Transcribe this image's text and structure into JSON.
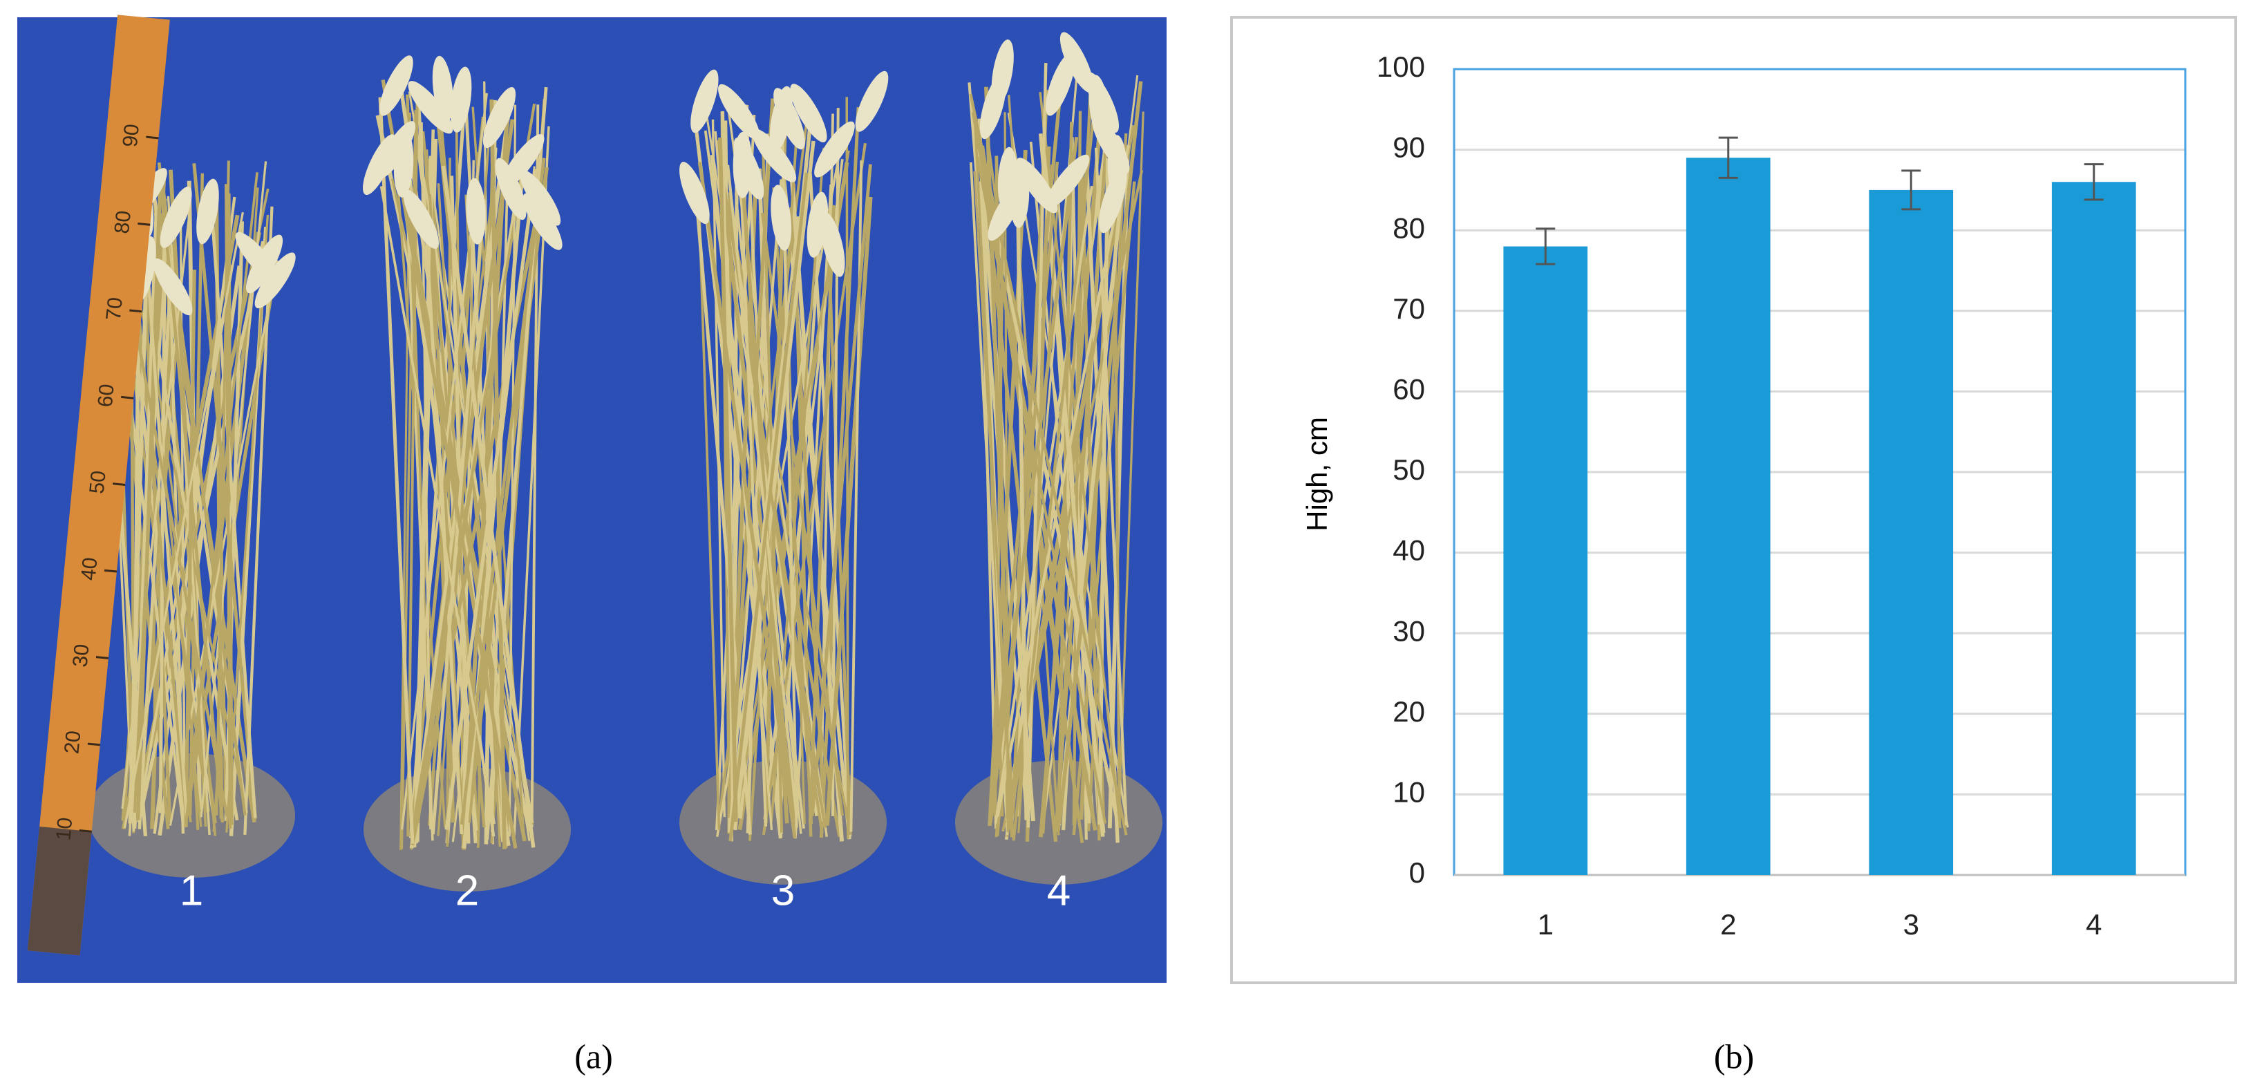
{
  "photo": {
    "labels": [
      "1",
      "2",
      "3",
      "4"
    ],
    "ruler_labels": [
      10,
      20,
      30,
      40,
      50,
      60,
      70,
      80,
      90
    ]
  },
  "captions": [
    "(a)",
    "(b)"
  ],
  "chart_data": {
    "type": "bar",
    "y_label": "High, cm",
    "categories": [
      "1",
      "2",
      "3",
      "4"
    ],
    "values": [
      78,
      89,
      85,
      86
    ],
    "errors": [
      2.2,
      2.5,
      2.4,
      2.2
    ],
    "color": "#1a9ad6",
    "ylim": [
      0,
      100
    ],
    "yticks": [
      0,
      10,
      20,
      30,
      40,
      50,
      60,
      70,
      80,
      90,
      100
    ],
    "grid": true
  }
}
